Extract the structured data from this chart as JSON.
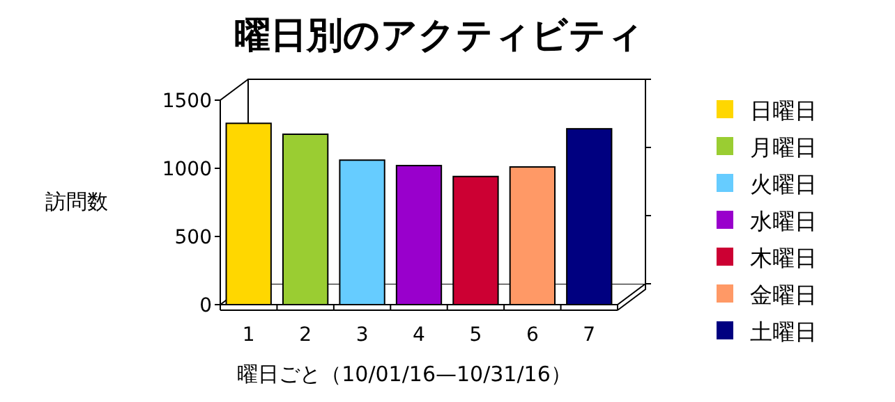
{
  "chart_data": {
    "type": "bar",
    "title": "曜日別のアクティビティ",
    "xlabel": "曜日ごと（10/01/16—10/31/16）",
    "ylabel": "訪問数",
    "categories": [
      "1",
      "2",
      "3",
      "4",
      "5",
      "6",
      "7"
    ],
    "ylim": [
      0,
      1500
    ],
    "yticks": [
      0,
      500,
      1000,
      1500
    ],
    "legend": "right",
    "series": [
      {
        "name": "日曜日",
        "color": "#ffd700",
        "values": [
          1330,
          null,
          null,
          null,
          null,
          null,
          null
        ]
      },
      {
        "name": "月曜日",
        "color": "#9acd32",
        "values": [
          null,
          1250,
          null,
          null,
          null,
          null,
          null
        ]
      },
      {
        "name": "火曜日",
        "color": "#66ccff",
        "values": [
          null,
          null,
          1060,
          null,
          null,
          null,
          null
        ]
      },
      {
        "name": "水曜日",
        "color": "#9900cc",
        "values": [
          null,
          null,
          null,
          1020,
          null,
          null,
          null
        ]
      },
      {
        "name": "木曜日",
        "color": "#cc0033",
        "values": [
          null,
          null,
          null,
          null,
          940,
          null,
          null
        ]
      },
      {
        "name": "金曜日",
        "color": "#ff9966",
        "values": [
          null,
          null,
          null,
          null,
          null,
          1010,
          null
        ]
      },
      {
        "name": "土曜日",
        "color": "#000080",
        "values": [
          null,
          null,
          null,
          null,
          null,
          null,
          1290
        ]
      }
    ]
  }
}
